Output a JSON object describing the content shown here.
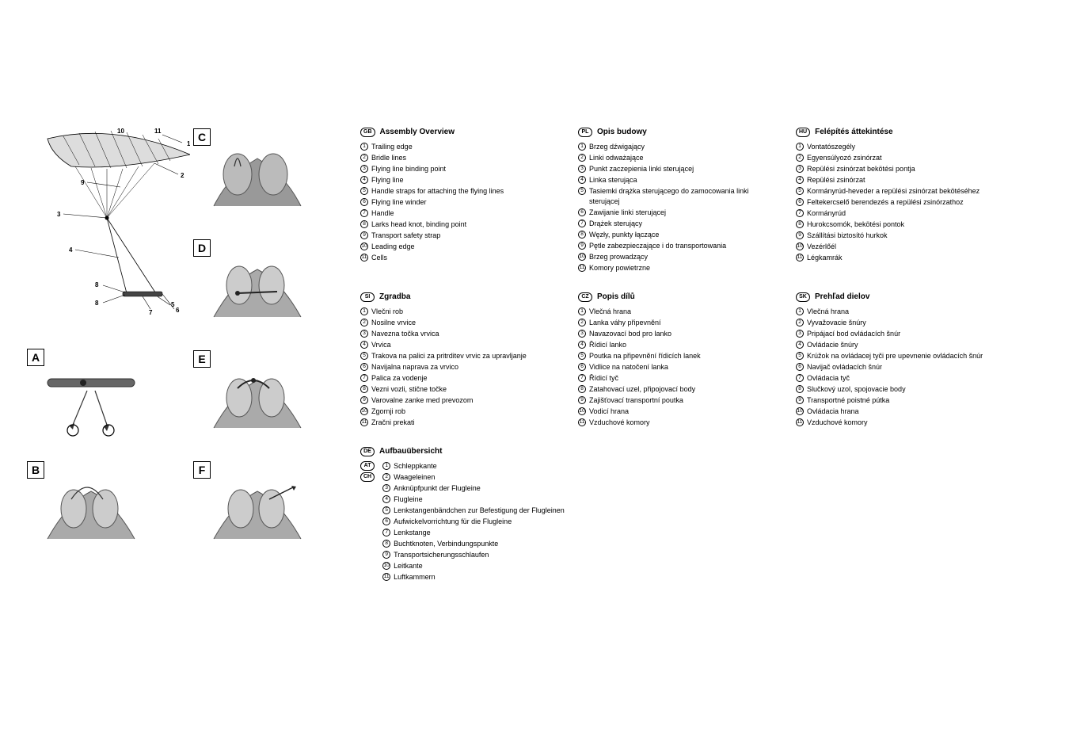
{
  "diagram": {
    "callouts": [
      "1",
      "2",
      "3",
      "4",
      "5",
      "6",
      "7",
      "8",
      "8",
      "9",
      "10",
      "11"
    ]
  },
  "thumbs_col2": [
    {
      "label": "C"
    },
    {
      "label": "D"
    },
    {
      "label": "E"
    },
    {
      "label": "F"
    }
  ],
  "thumbs_left": [
    {
      "label": "A"
    },
    {
      "label": "B"
    }
  ],
  "sections": {
    "gb": {
      "code": "GB",
      "title": "Assembly Overview",
      "items": [
        "Trailing edge",
        "Bridle lines",
        "Flying line binding point",
        "Flying line",
        "Handle straps for attaching the flying lines",
        "Flying line winder",
        "Handle",
        "Larks head knot, binding point",
        "Transport safety strap",
        "Leading edge",
        "Cells"
      ]
    },
    "pl": {
      "code": "PL",
      "title": "Opis budowy",
      "items": [
        "Brzeg dźwigający",
        "Linki odważające",
        "Punkt zaczepienia linki sterującej",
        "Linka sterująca",
        "Tasiemki drążka sterującego do zamocowania linki sterującej",
        "Zawijanie linki sterującej",
        "Drążek sterujący",
        "Węzły, punkty łączące",
        "Pętle zabezpieczające i do transportowania",
        "Brzeg prowadzący",
        "Komory powietrzne"
      ]
    },
    "hu": {
      "code": "HU",
      "title": "Felépítés áttekintése",
      "items": [
        "Vontatószegély",
        "Egyensúlyozó zsinórzat",
        "Repülési zsinórzat bekötési pontja",
        "Repülési zsinórzat",
        "Kormányrúd-heveder a repülési zsinórzat bekötéséhez",
        "Feltekercselő berendezés a repülési zsinórzathoz",
        "Kormányrúd",
        "Hurokcsomók, bekötési pontok",
        "Szállítási biztosító hurkok",
        "Vezérlőél",
        "Légkamrák"
      ]
    },
    "si": {
      "code": "SI",
      "title": "Zgradba",
      "items": [
        "Vlečni rob",
        "Nosilne vrvice",
        "Navezna točka vrvica",
        "Vrvica",
        "Trakova na palici za pritrditev vrvic za upravljanje",
        "Navijalna naprava za vrvico",
        "Palica za vodenje",
        "Vezni vozli, stične točke",
        "Varovalne zanke med prevozom",
        "Zgornji rob",
        "Zračni prekati"
      ]
    },
    "cz": {
      "code": "CZ",
      "title": "Popis dílů",
      "items": [
        "Vlečná hrana",
        "Lanka váhy připevnění",
        "Navazovací bod pro lanko",
        "Řídicí lanko",
        "Poutka na připevnění řídicích lanek",
        "Vidlice na natočení lanka",
        "Řídicí tyč",
        "Zatahovací uzel, připojovací body",
        "Zajišťovací transportní poutka",
        "Vodicí hrana",
        "Vzduchové komory"
      ]
    },
    "sk": {
      "code": "SK",
      "title": "Prehľad dielov",
      "items": [
        "Vlečná hrana",
        "Vyvažovacie šnúry",
        "Pripájací bod ovládacích šnúr",
        "Ovládacie šnúry",
        "Krúžok na ovládacej tyči pre upevnenie ovládacích šnúr",
        "Navijač ovládacích šnúr",
        "Ovládacia tyč",
        "Slučkový uzol, spojovacie body",
        "Transportné poistné pútka",
        "Ovládacia hrana",
        "Vzduchové komory"
      ]
    },
    "de": {
      "codes": [
        "DE",
        "AT",
        "CH"
      ],
      "title": "Aufbauübersicht",
      "items": [
        "Schleppkante",
        "Waageleinen",
        "Anknüpfpunkt der Flugleine",
        "Flugleine",
        "Lenkstangenbändchen zur Befestigung der Flugleinen",
        "Aufwickelvorrichtung für die Flugleine",
        "Lenkstange",
        "Buchtknoten, Verbindungspunkte",
        "Transportsicherungsschlaufen",
        "Leitkante",
        "Luftkammern"
      ]
    }
  }
}
